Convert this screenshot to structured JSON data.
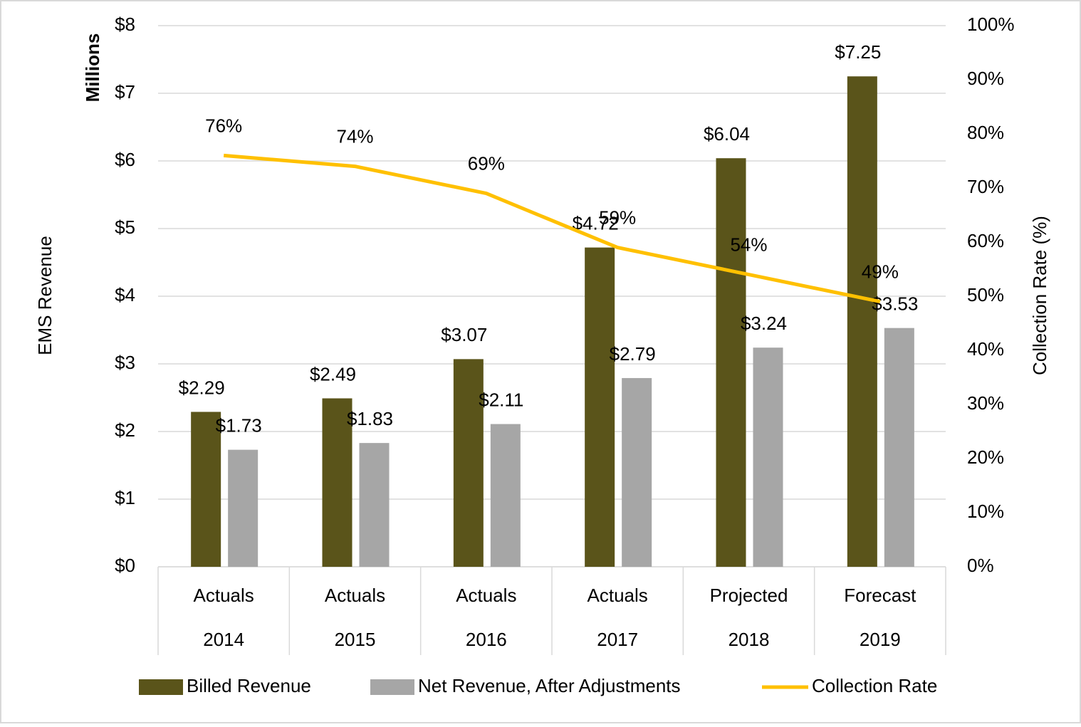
{
  "chart_data": {
    "type": "bar-line",
    "categories": [
      "Actuals",
      "Actuals",
      "Actuals",
      "Actuals",
      "Projected",
      "Forecast"
    ],
    "years": [
      "2014",
      "2015",
      "2016",
      "2017",
      "2018",
      "2019"
    ],
    "y_label": "EMS Revenue",
    "y_unit_label": "Millions",
    "y2_label": "Collection Rate (%)",
    "ylim": [
      0,
      8
    ],
    "yticks": [
      {
        "value": 0,
        "label": "$0"
      },
      {
        "value": 1,
        "label": "$1"
      },
      {
        "value": 2,
        "label": "$2"
      },
      {
        "value": 3,
        "label": "$3"
      },
      {
        "value": 4,
        "label": "$4"
      },
      {
        "value": 5,
        "label": "$5"
      },
      {
        "value": 6,
        "label": "$6"
      },
      {
        "value": 7,
        "label": "$7"
      },
      {
        "value": 8,
        "label": "$8"
      }
    ],
    "y2lim": [
      0,
      100
    ],
    "y2ticks": [
      {
        "value": 0,
        "label": "0%"
      },
      {
        "value": 10,
        "label": "10%"
      },
      {
        "value": 20,
        "label": "20%"
      },
      {
        "value": 30,
        "label": "30%"
      },
      {
        "value": 40,
        "label": "40%"
      },
      {
        "value": 50,
        "label": "50%"
      },
      {
        "value": 60,
        "label": "60%"
      },
      {
        "value": 70,
        "label": "70%"
      },
      {
        "value": 80,
        "label": "80%"
      },
      {
        "value": 90,
        "label": "90%"
      },
      {
        "value": 100,
        "label": "100%"
      }
    ],
    "grid": true,
    "legend": "bottom",
    "series": [
      {
        "name": "Billed Revenue",
        "type": "bar",
        "color": "#5a541a",
        "values": [
          2.29,
          2.49,
          3.07,
          4.72,
          6.04,
          7.25
        ],
        "value_labels": [
          "$2.29",
          "$2.49",
          "$3.07",
          "$4.72",
          "$6.04",
          "$7.25"
        ]
      },
      {
        "name": "Net Revenue, After Adjustments",
        "type": "bar",
        "color": "#a6a6a6",
        "values": [
          1.73,
          1.83,
          2.11,
          2.79,
          3.24,
          3.53
        ],
        "value_labels": [
          "$1.73",
          "$1.83",
          "$2.11",
          "$2.79",
          "$3.24",
          "$3.53"
        ]
      },
      {
        "name": "Collection Rate",
        "type": "line",
        "axis": "y2",
        "color": "#ffc000",
        "values": [
          76,
          74,
          69,
          59,
          54,
          49
        ],
        "value_labels": [
          "76%",
          "74%",
          "69%",
          "59%",
          "54%",
          "49%"
        ]
      }
    ]
  }
}
